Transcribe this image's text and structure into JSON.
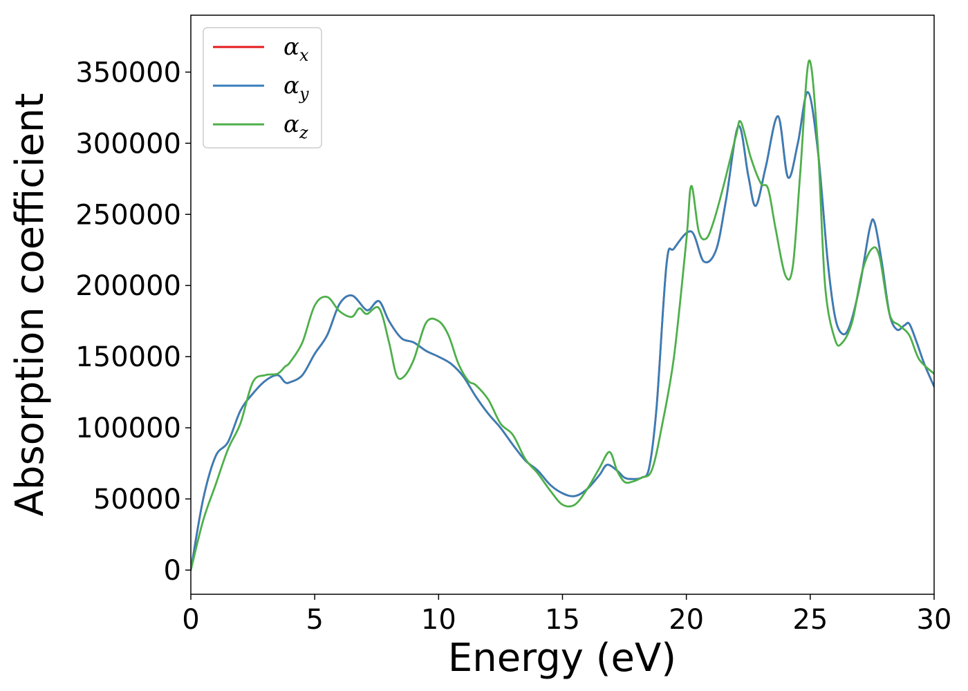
{
  "chart_data": {
    "type": "line",
    "title": "",
    "xlabel": "Energy (eV)",
    "ylabel": "Absorption coefficient",
    "xlim": [
      0,
      30
    ],
    "ylim": [
      -17000,
      390000
    ],
    "xticks": [
      0,
      5,
      10,
      15,
      20,
      25,
      30
    ],
    "xtick_labels": [
      "0",
      "5",
      "10",
      "15",
      "20",
      "25",
      "30"
    ],
    "yticks": [
      0,
      50000,
      100000,
      150000,
      200000,
      250000,
      300000,
      350000
    ],
    "ytick_labels": [
      "0",
      "50000",
      "100000",
      "150000",
      "200000",
      "250000",
      "300000",
      "350000"
    ],
    "grid": false,
    "legend": {
      "position": "top-left"
    },
    "series": [
      {
        "name": "α",
        "sub": "x",
        "color": "#e41a1c",
        "x": [
          0,
          0.5,
          1.0,
          1.5,
          2.0,
          2.5,
          3.0,
          3.5,
          3.8,
          4.0,
          4.5,
          5.0,
          5.5,
          6.0,
          6.5,
          7.0,
          7.2,
          7.6,
          8.0,
          8.5,
          9.0,
          9.5,
          10.0,
          10.5,
          11.0,
          11.5,
          12.0,
          12.5,
          13.0,
          13.5,
          14.0,
          14.5,
          15.0,
          15.5,
          16.0,
          16.5,
          16.8,
          17.2,
          17.5,
          17.8,
          18.2,
          18.5,
          18.8,
          19.2,
          19.5,
          20.2,
          20.7,
          21.2,
          21.6,
          22.1,
          22.5,
          22.8,
          23.2,
          23.7,
          24.1,
          24.5,
          24.9,
          25.3,
          25.7,
          26.0,
          26.3,
          26.6,
          27.0,
          27.4,
          27.6,
          27.9,
          28.2,
          28.5,
          28.8,
          29.0,
          29.3,
          29.6,
          30.0
        ],
        "y": [
          0,
          50000,
          80000,
          90000,
          112000,
          124000,
          133000,
          137000,
          132000,
          132000,
          137000,
          152000,
          165000,
          187000,
          193000,
          184000,
          183000,
          189000,
          175000,
          163000,
          160000,
          154000,
          150000,
          145000,
          136000,
          122000,
          110000,
          100000,
          88000,
          77000,
          70000,
          60000,
          54000,
          52000,
          57000,
          67000,
          74000,
          70000,
          65000,
          64000,
          65000,
          72000,
          115000,
          215000,
          226000,
          238000,
          217000,
          225000,
          260000,
          312000,
          277000,
          256000,
          283000,
          319000,
          276000,
          300000,
          336000,
          296000,
          218000,
          178000,
          166000,
          172000,
          200000,
          240000,
          244000,
          215000,
          180000,
          169000,
          172000,
          173000,
          160000,
          145000,
          129000
        ]
      },
      {
        "name": "α",
        "sub": "y",
        "color": "#377eb8",
        "x": [
          0,
          0.5,
          1.0,
          1.5,
          2.0,
          2.5,
          3.0,
          3.5,
          3.8,
          4.0,
          4.5,
          5.0,
          5.5,
          6.0,
          6.5,
          7.0,
          7.2,
          7.6,
          8.0,
          8.5,
          9.0,
          9.5,
          10.0,
          10.5,
          11.0,
          11.5,
          12.0,
          12.5,
          13.0,
          13.5,
          14.0,
          14.5,
          15.0,
          15.5,
          16.0,
          16.5,
          16.8,
          17.2,
          17.5,
          17.8,
          18.2,
          18.5,
          18.8,
          19.2,
          19.5,
          20.2,
          20.7,
          21.2,
          21.6,
          22.1,
          22.5,
          22.8,
          23.2,
          23.7,
          24.1,
          24.5,
          24.9,
          25.3,
          25.7,
          26.0,
          26.3,
          26.6,
          27.0,
          27.4,
          27.6,
          27.9,
          28.2,
          28.5,
          28.8,
          29.0,
          29.3,
          29.6,
          30.0
        ],
        "y": [
          0,
          50000,
          80000,
          90000,
          112000,
          124000,
          133000,
          137000,
          132000,
          132000,
          137000,
          152000,
          165000,
          187000,
          193000,
          184000,
          183000,
          189000,
          175000,
          163000,
          160000,
          154000,
          150000,
          145000,
          136000,
          122000,
          110000,
          100000,
          88000,
          77000,
          70000,
          60000,
          54000,
          52000,
          57000,
          67000,
          74000,
          70000,
          65000,
          64000,
          65000,
          72000,
          115000,
          215000,
          226000,
          238000,
          217000,
          225000,
          260000,
          312000,
          277000,
          256000,
          283000,
          319000,
          276000,
          300000,
          336000,
          296000,
          218000,
          178000,
          166000,
          172000,
          200000,
          240000,
          244000,
          215000,
          180000,
          169000,
          172000,
          173000,
          160000,
          145000,
          129000
        ]
      },
      {
        "name": "α",
        "sub": "z",
        "color": "#4daf4a",
        "x": [
          0,
          0.5,
          1.0,
          1.5,
          2.0,
          2.5,
          3.0,
          3.5,
          3.8,
          4.0,
          4.5,
          5.0,
          5.5,
          6.0,
          6.5,
          6.8,
          7.1,
          7.6,
          8.0,
          8.3,
          8.6,
          9.0,
          9.5,
          10.0,
          10.4,
          10.8,
          11.2,
          11.5,
          12.0,
          12.5,
          13.0,
          13.5,
          14.0,
          14.5,
          15.0,
          15.5,
          16.0,
          16.5,
          16.9,
          17.2,
          17.5,
          17.8,
          18.2,
          18.6,
          19.0,
          19.5,
          20.0,
          20.2,
          20.5,
          20.8,
          21.1,
          21.5,
          22.0,
          22.2,
          22.6,
          23.0,
          23.3,
          23.6,
          24.0,
          24.3,
          24.6,
          24.95,
          25.3,
          25.6,
          26.0,
          26.3,
          26.7,
          27.1,
          27.5,
          27.8,
          28.2,
          28.6,
          29.0,
          29.4,
          30.0
        ],
        "y": [
          0,
          35000,
          60000,
          85000,
          103000,
          132000,
          137000,
          138000,
          143000,
          146000,
          160000,
          186000,
          192000,
          182000,
          178000,
          184000,
          180000,
          184000,
          160000,
          137000,
          136000,
          148000,
          174000,
          175000,
          165000,
          145000,
          133000,
          130000,
          120000,
          103000,
          95000,
          78000,
          68000,
          56000,
          46000,
          46000,
          57000,
          72000,
          83000,
          70000,
          62000,
          62000,
          65000,
          70000,
          100000,
          150000,
          232000,
          270000,
          238000,
          233000,
          245000,
          270000,
          305000,
          315000,
          290000,
          272000,
          268000,
          240000,
          207000,
          214000,
          280000,
          358000,
          300000,
          200000,
          162000,
          160000,
          175000,
          210000,
          226000,
          220000,
          180000,
          172000,
          165000,
          148000,
          138000
        ]
      }
    ]
  }
}
